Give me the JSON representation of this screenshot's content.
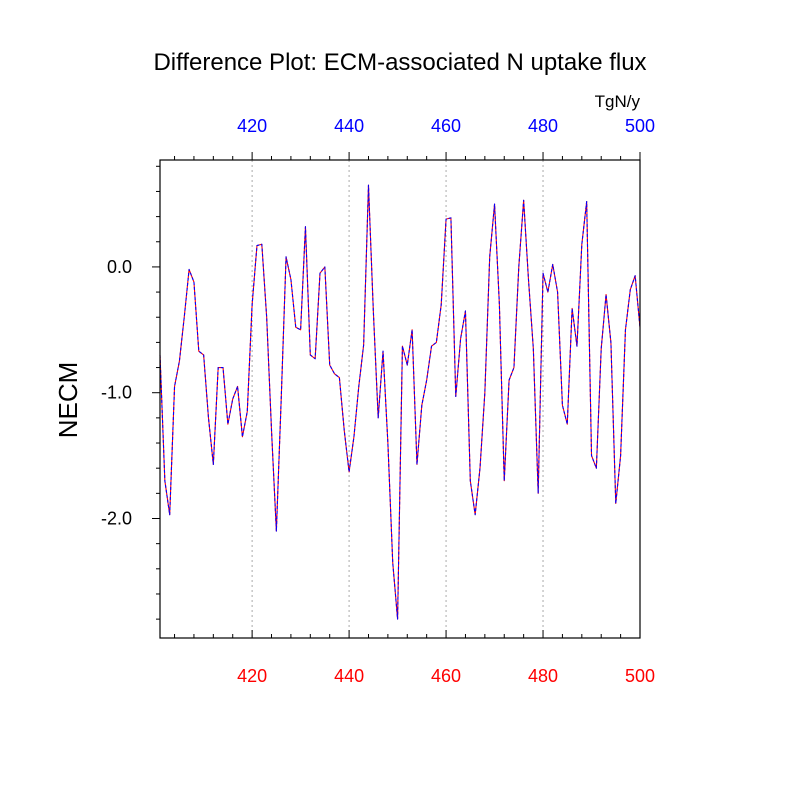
{
  "chart_data": {
    "type": "line",
    "title": "Difference Plot: ECM-associated N uptake flux",
    "units": "TgN/y",
    "ylabel": "NECM",
    "xlabel": "",
    "xlim": [
      401,
      500
    ],
    "ylim": [
      -2.95,
      0.85
    ],
    "x_ticks": [
      420,
      440,
      460,
      480,
      500
    ],
    "x_tick_labels": [
      "420",
      "440",
      "460",
      "480",
      "500"
    ],
    "y_ticks": [
      0.0,
      -1.0,
      -2.0
    ],
    "y_tick_labels": [
      "0.0",
      "-1.0",
      "-2.0"
    ],
    "grid": "dotted vertical lines at major x ticks",
    "colors": {
      "top_axis_labels": "#0000ff",
      "bottom_axis_labels": "#ff0000",
      "series_a": "#ff0000",
      "series_b": "#0000ff"
    },
    "x": [
      401,
      402,
      403,
      404,
      405,
      406,
      407,
      408,
      409,
      410,
      411,
      412,
      413,
      414,
      415,
      416,
      417,
      418,
      419,
      420,
      421,
      422,
      423,
      424,
      425,
      426,
      427,
      428,
      429,
      430,
      431,
      432,
      433,
      434,
      435,
      436,
      437,
      438,
      439,
      440,
      441,
      442,
      443,
      444,
      445,
      446,
      447,
      448,
      449,
      450,
      451,
      452,
      453,
      454,
      455,
      456,
      457,
      458,
      459,
      460,
      461,
      462,
      463,
      464,
      465,
      466,
      467,
      468,
      469,
      470,
      471,
      472,
      473,
      474,
      475,
      476,
      477,
      478,
      479,
      480,
      481,
      482,
      483,
      484,
      485,
      486,
      487,
      488,
      489,
      490,
      491,
      492,
      493,
      494,
      495,
      496,
      497,
      498,
      499,
      500
    ],
    "series": [
      {
        "values": [
          -0.7,
          -1.7,
          -1.97,
          -0.95,
          -0.75,
          -0.4,
          -0.02,
          -0.12,
          -0.67,
          -0.7,
          -1.2,
          -1.57,
          -0.8,
          -0.8,
          -1.25,
          -1.05,
          -0.95,
          -1.35,
          -1.15,
          -0.3,
          0.17,
          0.18,
          -0.4,
          -1.3,
          -2.1,
          -1.05,
          0.08,
          -0.1,
          -0.48,
          -0.5,
          0.32,
          -0.7,
          -0.73,
          -0.05,
          0.0,
          -0.78,
          -0.85,
          -0.88,
          -1.3,
          -1.63,
          -1.35,
          -0.95,
          -0.62,
          0.65,
          -0.35,
          -1.2,
          -0.67,
          -1.4,
          -2.35,
          -2.8,
          -0.63,
          -0.78,
          -0.5,
          -1.57,
          -1.1,
          -0.9,
          -0.63,
          -0.6,
          -0.3,
          0.38,
          0.39,
          -1.03,
          -0.57,
          -0.35,
          -1.7,
          -1.97,
          -1.6,
          -1.0,
          0.08,
          0.5,
          -0.3,
          -1.7,
          -0.9,
          -0.8,
          0.0,
          0.53,
          -0.1,
          -0.65,
          -1.8,
          -0.05,
          -0.2,
          0.02,
          -0.2,
          -1.1,
          -1.25,
          -0.33,
          -0.63,
          0.18,
          0.52,
          -1.5,
          -1.6,
          -0.65,
          -0.22,
          -0.6,
          -1.88,
          -1.5,
          -0.5,
          -0.18,
          -0.07,
          -0.48
        ]
      },
      {
        "values": [
          -0.7,
          -1.7,
          -1.97,
          -0.95,
          -0.75,
          -0.4,
          -0.02,
          -0.12,
          -0.67,
          -0.7,
          -1.2,
          -1.57,
          -0.8,
          -0.8,
          -1.25,
          -1.05,
          -0.95,
          -1.35,
          -1.15,
          -0.3,
          0.17,
          0.18,
          -0.4,
          -1.3,
          -2.1,
          -1.05,
          0.08,
          -0.1,
          -0.48,
          -0.5,
          0.32,
          -0.7,
          -0.73,
          -0.05,
          0.0,
          -0.78,
          -0.85,
          -0.88,
          -1.3,
          -1.63,
          -1.35,
          -0.95,
          -0.62,
          0.65,
          -0.35,
          -1.2,
          -0.67,
          -1.4,
          -2.35,
          -2.8,
          -0.63,
          -0.78,
          -0.5,
          -1.57,
          -1.1,
          -0.9,
          -0.63,
          -0.6,
          -0.3,
          0.38,
          0.39,
          -1.03,
          -0.57,
          -0.35,
          -1.7,
          -1.97,
          -1.6,
          -1.0,
          0.08,
          0.5,
          -0.3,
          -1.7,
          -0.9,
          -0.8,
          0.0,
          0.53,
          -0.1,
          -0.65,
          -1.8,
          -0.05,
          -0.2,
          0.02,
          -0.2,
          -1.1,
          -1.25,
          -0.33,
          -0.63,
          0.18,
          0.52,
          -1.5,
          -1.6,
          -0.65,
          -0.22,
          -0.6,
          -1.88,
          -1.5,
          -0.5,
          -0.18,
          -0.07,
          -0.48
        ]
      }
    ]
  }
}
